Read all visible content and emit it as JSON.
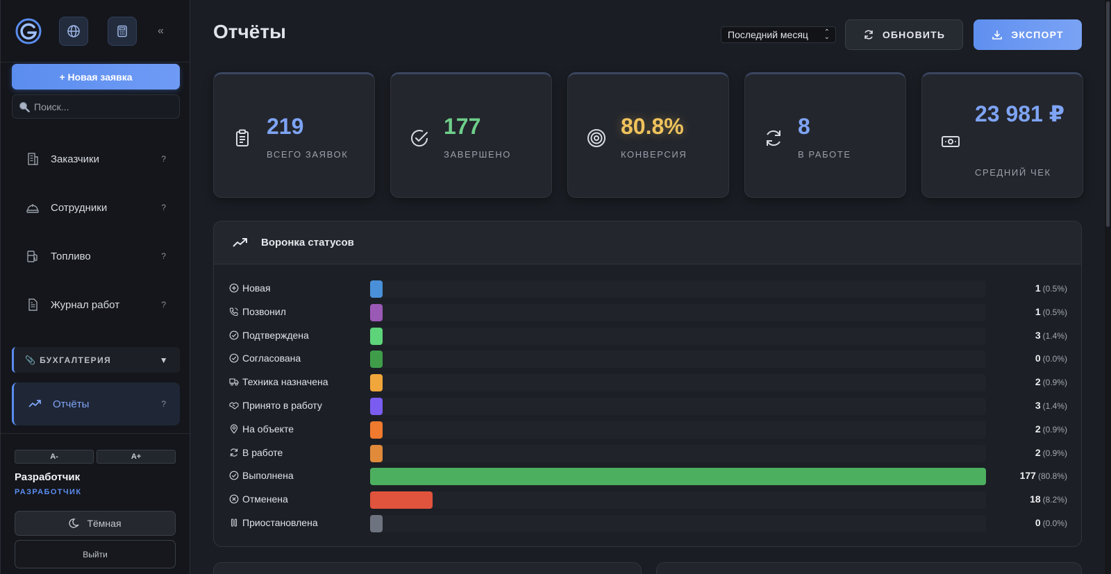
{
  "sidebar": {
    "collapse_label": "«",
    "new_request_label": "+ Новая заявка",
    "search": {
      "placeholder": "Поиск...",
      "value": ""
    },
    "items": [
      {
        "label": "Заказчики",
        "hint": "?",
        "icon": "building-icon"
      },
      {
        "label": "Сотрудники",
        "hint": "?",
        "icon": "hardhat-icon"
      },
      {
        "label": "Топливо",
        "hint": "?",
        "icon": "fuel-icon"
      },
      {
        "label": "Журнал работ",
        "hint": "?",
        "icon": "document-icon"
      }
    ],
    "section": {
      "label": "📎 БУХГАЛТЕРИЯ",
      "arrow": "▼"
    },
    "active_item": {
      "label": "Отчёты",
      "hint": "?",
      "icon": "trending-up-icon"
    },
    "font_decrease": "A-",
    "font_increase": "A+",
    "user_name": "Разработчик",
    "user_role": "РАЗРАБОТЧИК",
    "theme_label": "Тёмная",
    "logout_label": "Выйти"
  },
  "header": {
    "title": "Отчёты",
    "period": "Последний месяц",
    "refresh_label": "ОБНОВИТЬ",
    "export_label": "ЭКСПОРТ"
  },
  "stats": [
    {
      "value": "219",
      "label": "ВСЕГО ЗАЯВОК",
      "color": "#7ea4f5",
      "icon": "clipboard-icon"
    },
    {
      "value": "177",
      "label": "ЗАВЕРШЕНО",
      "color": "#6fcf8a",
      "icon": "check-circle-icon"
    },
    {
      "value": "80.8%",
      "label": "КОНВЕРСИЯ",
      "color": "#f0c35c",
      "icon": "target-icon"
    },
    {
      "value": "8",
      "label": "В РАБОТЕ",
      "color": "#7ea4f5",
      "icon": "refresh-icon"
    },
    {
      "value": "23 981 ₽",
      "label": "СРЕДНИЙ ЧЕК",
      "color": "#7ea4f5",
      "icon": "cash-icon"
    }
  ],
  "funnel": {
    "title": "Воронка статусов",
    "rows": [
      {
        "label": "Новая",
        "count": "1",
        "pct": "(0.5%)",
        "share": 0.005,
        "color": "#4a90d9",
        "icon": "plus-circle-icon"
      },
      {
        "label": "Позвонил",
        "count": "1",
        "pct": "(0.5%)",
        "share": 0.005,
        "color": "#9b59b6",
        "icon": "phone-icon"
      },
      {
        "label": "Подтверждена",
        "count": "3",
        "pct": "(1.4%)",
        "share": 0.014,
        "color": "#5dd37a",
        "icon": "check-circle-icon"
      },
      {
        "label": "Согласована",
        "count": "0",
        "pct": "(0.0%)",
        "share": 0.0,
        "color": "#3f9d4a",
        "icon": "check-circle-icon"
      },
      {
        "label": "Техника назначена",
        "count": "2",
        "pct": "(0.9%)",
        "share": 0.009,
        "color": "#f0a63a",
        "icon": "truck-icon"
      },
      {
        "label": "Принято в работу",
        "count": "3",
        "pct": "(1.4%)",
        "share": 0.014,
        "color": "#7b5cf0",
        "icon": "handshake-icon"
      },
      {
        "label": "На объекте",
        "count": "2",
        "pct": "(0.9%)",
        "share": 0.009,
        "color": "#f07a2e",
        "icon": "pin-icon"
      },
      {
        "label": "В работе",
        "count": "2",
        "pct": "(0.9%)",
        "share": 0.009,
        "color": "#e08a3a",
        "icon": "refresh-icon"
      },
      {
        "label": "Выполнена",
        "count": "177",
        "pct": "(80.8%)",
        "share": 0.808,
        "color": "#4caf5f",
        "icon": "check-circle-icon"
      },
      {
        "label": "Отменена",
        "count": "18",
        "pct": "(8.2%)",
        "share": 0.082,
        "color": "#e0533c",
        "icon": "x-circle-icon"
      },
      {
        "label": "Приостановлена",
        "count": "0",
        "pct": "(0.0%)",
        "share": 0.0,
        "color": "#6e7380",
        "icon": "pause-icon"
      }
    ]
  }
}
